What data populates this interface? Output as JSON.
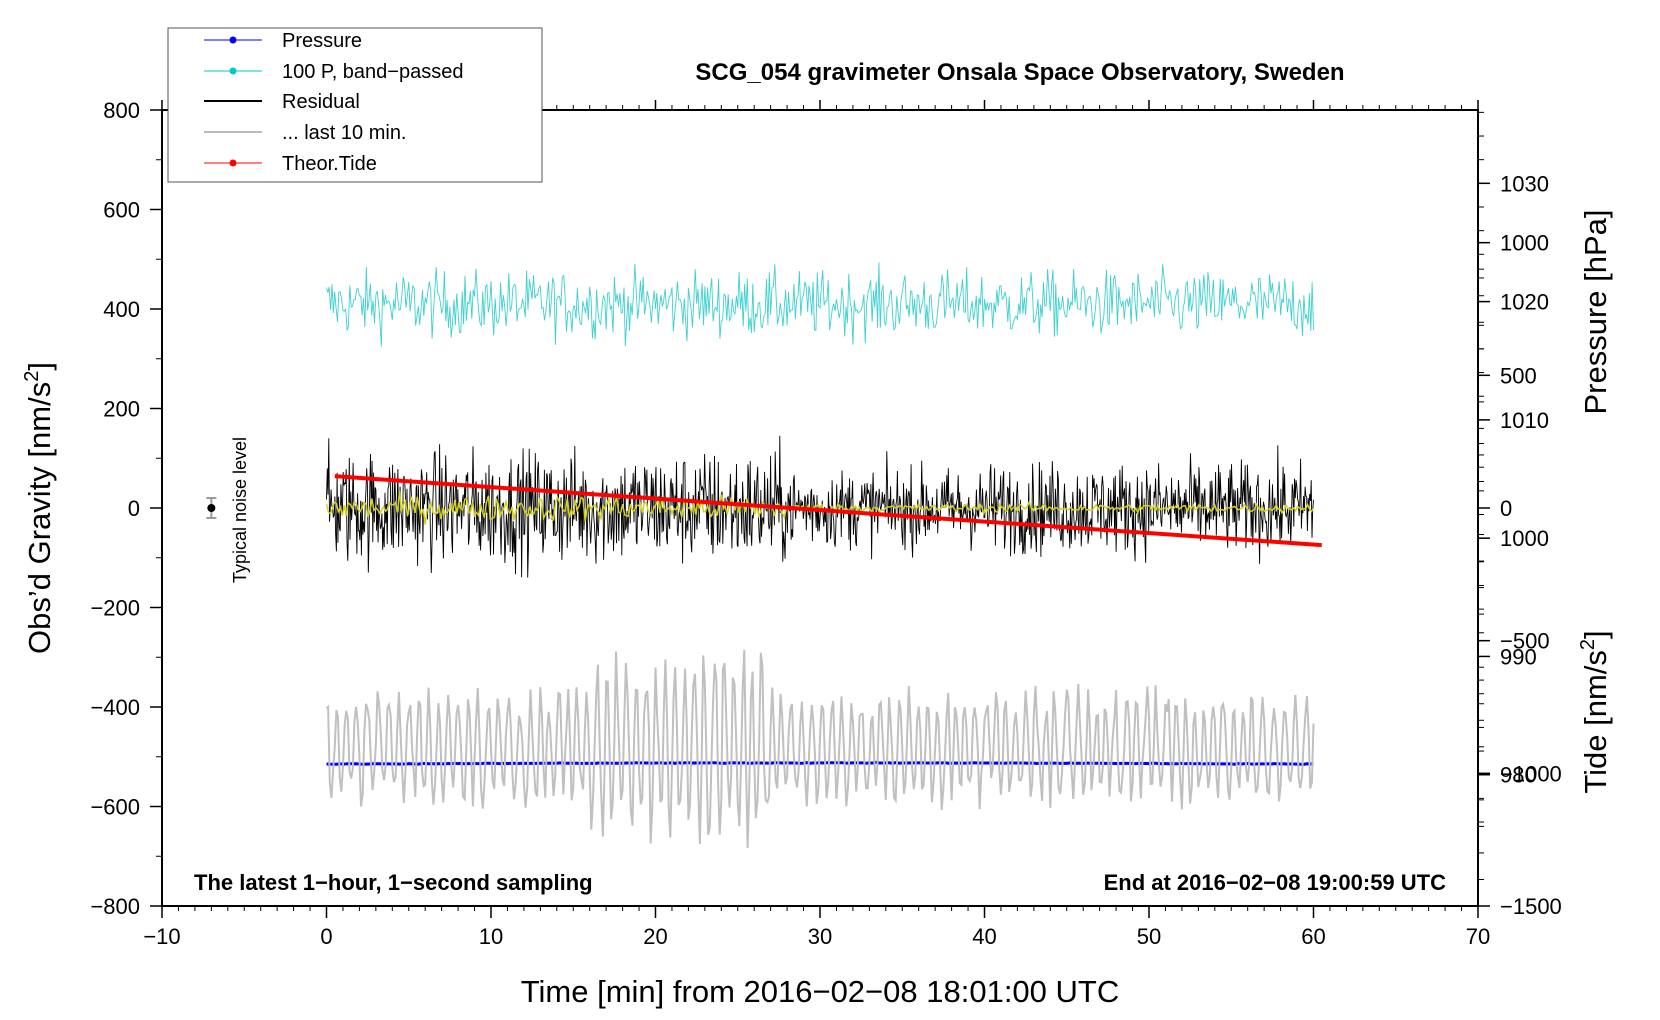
{
  "chart_data": {
    "type": "line",
    "title": "SCG_054 gravimeter Onsala Space Observatory, Sweden",
    "xlabel": "Time [min] from 2016−02−08 18:01:00 UTC",
    "ylabel_prefix": "Obs’d Gravity [nm/s",
    "ylabel_sup": "2",
    "ylabel_suffix": "]",
    "pressure_label": "Pressure [hPa]",
    "tide_label_prefix": "Tide [nm/s",
    "tide_label_sup": "2",
    "tide_label_suffix": "]",
    "xlim": [
      -10,
      70
    ],
    "ylim": [
      -800,
      800
    ],
    "pressure_lim": [
      968.9,
      1036.2
    ],
    "tide_lim": [
      -1500,
      1500
    ],
    "x_ticks": [
      -10,
      0,
      10,
      20,
      30,
      40,
      50,
      60,
      70
    ],
    "x_tick_labels": [
      "−10",
      "0",
      "10",
      "20",
      "30",
      "40",
      "50",
      "60",
      "70"
    ],
    "y_ticks": [
      800,
      600,
      400,
      200,
      0,
      -200,
      -400,
      -600,
      -800
    ],
    "y_tick_labels": [
      "800",
      "600",
      "400",
      "200",
      "0",
      "−200",
      "−400",
      "−600",
      "−800"
    ],
    "pressure_ticks": [
      1030,
      1020,
      1010,
      1000,
      990,
      980
    ],
    "pressure_tick_labels": [
      "1030",
      "1020",
      "1010",
      "1000",
      "990",
      "980"
    ],
    "tide_ticks": [
      1000,
      500,
      0,
      -500,
      -1000,
      -1500
    ],
    "tide_tick_labels": [
      "1000",
      "500",
      "0",
      "−500",
      "−1000",
      "−1500"
    ],
    "noise_label": "Typical noise level",
    "noise_marker": {
      "x": -7,
      "y": 0,
      "err": 20
    },
    "annotation_left": "The latest 1−hour, 1−second sampling",
    "annotation_right": "End at 2016−02−08 19:00:59 UTC",
    "legend": [
      {
        "label": "Pressure",
        "color": "#0000ff",
        "marker": true
      },
      {
        "label": "100 P, band−passed",
        "color": "#00c8c8",
        "marker": true
      },
      {
        "label": "Residual",
        "color": "#000000",
        "marker": false
      },
      {
        "label": "... last 10 min.",
        "color": "#bbbbbb",
        "marker": false
      },
      {
        "label": "Theor.Tide",
        "color": "#ff0000",
        "marker": true
      }
    ],
    "colors": {
      "pressure": "#0000ff",
      "bandpassed": "#40d0d0",
      "residual": "#000000",
      "smoothed": "#d4d020",
      "last10": "#c0c0c0",
      "tide": "#ff0000"
    },
    "series": [
      {
        "name": "Pressure",
        "axis": "pressure_hPa",
        "x_range": [
          0,
          60
        ],
        "level": 980.9,
        "amp": 0.1
      },
      {
        "name": "100 P, band−passed",
        "axis": "gravity_nm_s2",
        "x_range": [
          0,
          60
        ],
        "mean": 410,
        "amp": 120
      },
      {
        "name": "Residual",
        "axis": "gravity_nm_s2",
        "x_range": [
          0,
          60
        ],
        "mean": 0,
        "amp": 270
      },
      {
        "name": "Residual smoothed",
        "axis": "gravity_nm_s2",
        "x_range": [
          0,
          60
        ],
        "mean": 0,
        "amp": 50
      },
      {
        "name": "... last 10 min.",
        "axis": "gravity_nm_s2",
        "x_range": [
          0,
          60
        ],
        "mean": -480,
        "amp": 250
      },
      {
        "name": "Theor.Tide",
        "axis": "tide_nm_s2",
        "x_range": [
          0.5,
          60.5
        ],
        "start": 120,
        "end": -140
      }
    ]
  }
}
